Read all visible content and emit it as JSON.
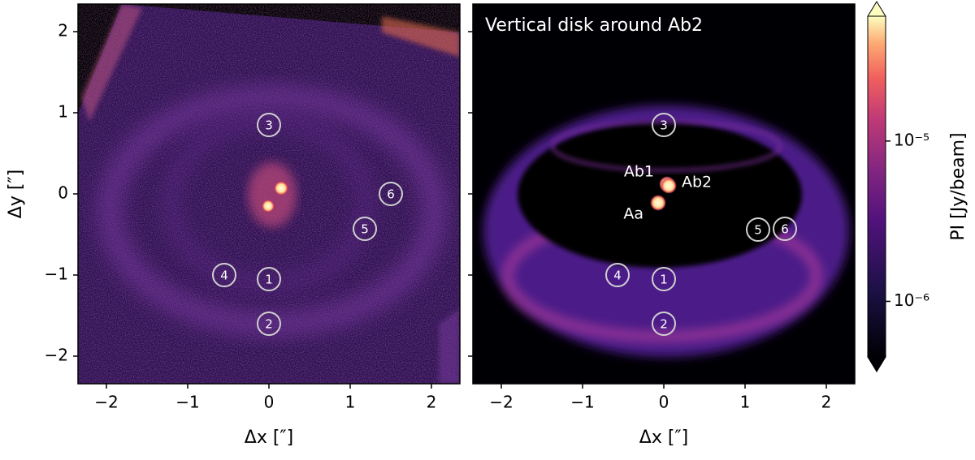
{
  "chart_data": [
    {
      "type": "image",
      "xlabel": "Δx [″]",
      "ylabel": "Δy [″]",
      "xlim": [
        -2.35,
        2.35
      ],
      "ylim": [
        -2.34,
        2.34
      ],
      "xticks": [
        {
          "value": -2,
          "label": "−2"
        },
        {
          "value": -1,
          "label": "−1"
        },
        0,
        1,
        2
      ],
      "yticks": [
        {
          "value": -2,
          "label": "−2"
        },
        {
          "value": -1,
          "label": "−1"
        },
        0,
        1,
        2
      ],
      "markers": {
        "labels": [
          "1",
          "2",
          "3",
          "4",
          "5",
          "6"
        ],
        "x": [
          0,
          0,
          0,
          -0.55,
          1.18,
          1.5
        ],
        "y": [
          -1.05,
          -1.6,
          0.85,
          -1.0,
          -0.43,
          0.0
        ]
      }
    },
    {
      "type": "image",
      "title": "Vertical disk around Ab2",
      "xlabel": "Δx [″]",
      "xlim": [
        -2.35,
        2.35
      ],
      "ylim": [
        -2.34,
        2.34
      ],
      "xticks": [
        {
          "value": -2,
          "label": "−2"
        },
        {
          "value": -1,
          "label": "−1"
        },
        0,
        1,
        2
      ],
      "yticks": [
        -2,
        -1,
        0,
        1,
        2
      ],
      "markers": {
        "labels": [
          "1",
          "2",
          "3",
          "4",
          "5",
          "6"
        ],
        "x": [
          0,
          0,
          0,
          -0.57,
          1.16,
          1.49
        ],
        "y": [
          -1.05,
          -1.6,
          0.85,
          -1.0,
          -0.44,
          -0.43
        ]
      },
      "stars": {
        "labels": [
          "Aa",
          "Ab1",
          "Ab2"
        ],
        "x": [
          -0.07,
          0.04,
          0.06
        ],
        "y": [
          -0.11,
          0.12,
          0.1
        ]
      },
      "colorbar": {
        "label": "PI [Jy/beam]",
        "log": true,
        "lim": [
          4.5e-07,
          6e-05
        ],
        "ticks": [
          {
            "value": 1e-06,
            "label": "10⁻⁶"
          },
          {
            "value": 1e-05,
            "label": "10⁻⁵"
          }
        ]
      }
    }
  ]
}
